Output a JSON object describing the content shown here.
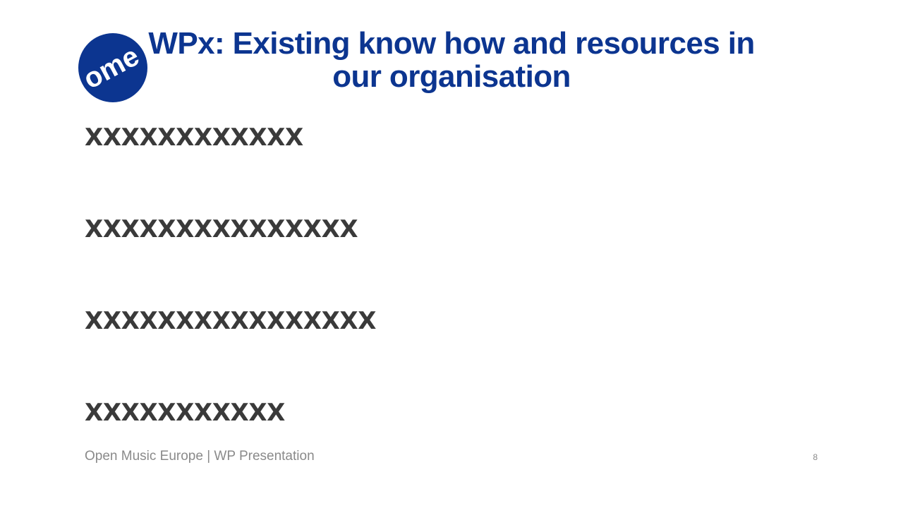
{
  "logo": {
    "text": "ome",
    "color": "#0c3590"
  },
  "title": "WPx: Existing know how and resources in our organisation",
  "bullets": [
    "XXXXXXXXXXXX",
    "XXXXXXXXXXXXXXX",
    "XXXXXXXXXXXXXXXX",
    "XXXXXXXXXXX"
  ],
  "footer": {
    "text": "Open Music Europe | WP Presentation",
    "page_number": "8"
  }
}
